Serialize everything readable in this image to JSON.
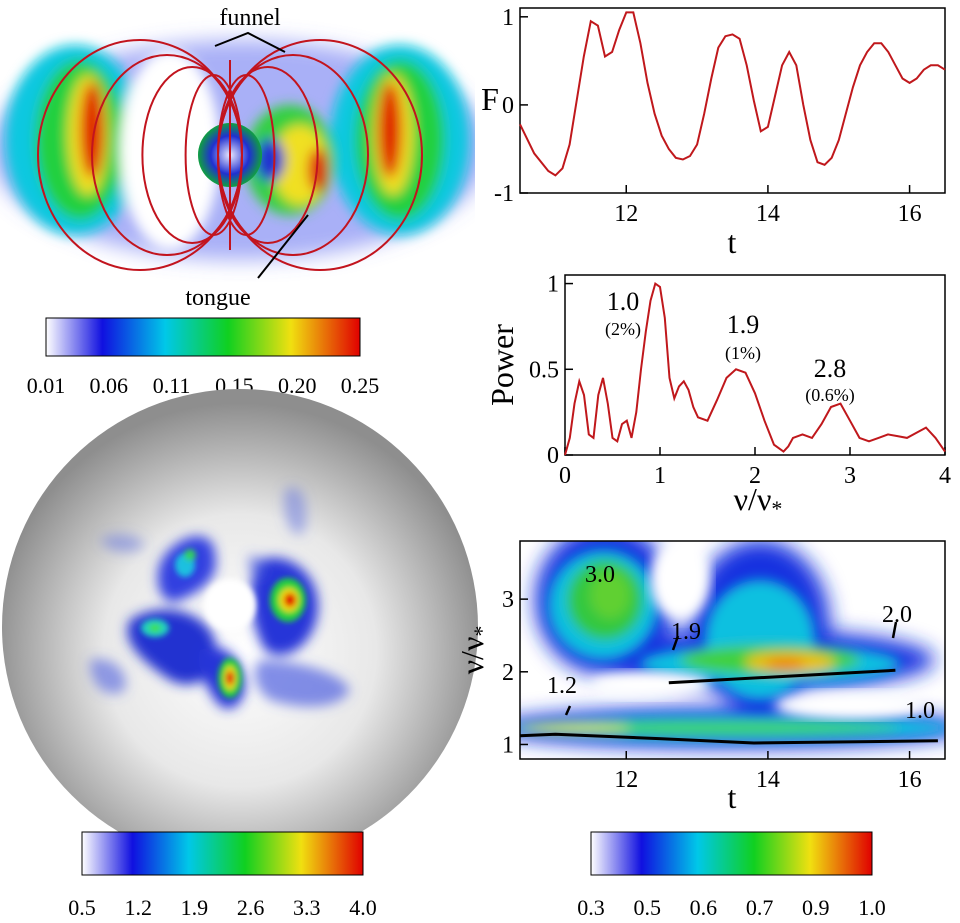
{
  "colors": {
    "curve": "#c0181c",
    "fieldline": "#c2141e",
    "axis": "#000000"
  },
  "panels": {
    "meridional": {
      "annotations": {
        "funnel": "funnel",
        "tongue": "tongue"
      },
      "colorbar": {
        "palette": "rainbow",
        "ticks": [
          "0.01",
          "0.06",
          "0.11",
          "0.15",
          "0.20",
          "0.25"
        ]
      }
    },
    "surface": {
      "colorbar": {
        "palette": "rainbow",
        "ticks": [
          "0.5",
          "1.2",
          "1.9",
          "2.6",
          "3.3",
          "4.0"
        ]
      }
    },
    "wavelet": {
      "colorbar": {
        "palette": "rainbow",
        "ticks": [
          "0.3",
          "0.5",
          "0.6",
          "0.7",
          "0.9",
          "1.0"
        ]
      }
    }
  },
  "chart_data": [
    {
      "type": "line",
      "ylabel": "F",
      "xlabel": "t",
      "xlim": [
        10.5,
        16.5
      ],
      "ylim": [
        -1,
        1.1
      ],
      "xticks": [
        "12",
        "14",
        "16"
      ],
      "yticks": [
        "-1",
        "0",
        "1"
      ],
      "x": [
        10.5,
        10.7,
        10.9,
        11.0,
        11.1,
        11.2,
        11.3,
        11.4,
        11.5,
        11.6,
        11.7,
        11.8,
        11.9,
        12.0,
        12.1,
        12.2,
        12.3,
        12.4,
        12.5,
        12.6,
        12.7,
        12.8,
        12.9,
        13.0,
        13.1,
        13.2,
        13.3,
        13.4,
        13.5,
        13.6,
        13.7,
        13.8,
        13.9,
        14.0,
        14.1,
        14.2,
        14.3,
        14.4,
        14.5,
        14.6,
        14.7,
        14.8,
        14.9,
        15.0,
        15.1,
        15.2,
        15.3,
        15.4,
        15.5,
        15.6,
        15.7,
        15.8,
        15.9,
        16.0,
        16.1,
        16.2,
        16.3,
        16.4,
        16.5
      ],
      "y": [
        -0.22,
        -0.55,
        -0.75,
        -0.8,
        -0.72,
        -0.45,
        0.05,
        0.55,
        0.95,
        0.9,
        0.55,
        0.6,
        0.85,
        1.05,
        1.05,
        0.7,
        0.25,
        -0.1,
        -0.35,
        -0.5,
        -0.6,
        -0.62,
        -0.58,
        -0.45,
        -0.1,
        0.3,
        0.65,
        0.78,
        0.8,
        0.75,
        0.45,
        0.05,
        -0.3,
        -0.25,
        0.1,
        0.45,
        0.6,
        0.45,
        0.0,
        -0.4,
        -0.65,
        -0.68,
        -0.6,
        -0.4,
        -0.1,
        0.2,
        0.45,
        0.6,
        0.7,
        0.7,
        0.6,
        0.45,
        0.3,
        0.25,
        0.3,
        0.4,
        0.45,
        0.45,
        0.4
      ]
    },
    {
      "type": "line",
      "ylabel": "Power",
      "xlabel": "ν/ν*",
      "xlim": [
        0,
        4
      ],
      "ylim": [
        0,
        1.05
      ],
      "xticks": [
        "0",
        "1",
        "2",
        "3",
        "4"
      ],
      "yticks": [
        "0",
        "0.5",
        "1"
      ],
      "x": [
        0.0,
        0.05,
        0.1,
        0.15,
        0.2,
        0.25,
        0.3,
        0.35,
        0.4,
        0.45,
        0.5,
        0.55,
        0.6,
        0.65,
        0.7,
        0.75,
        0.8,
        0.85,
        0.9,
        0.95,
        1.0,
        1.05,
        1.1,
        1.15,
        1.2,
        1.25,
        1.3,
        1.35,
        1.4,
        1.5,
        1.6,
        1.7,
        1.8,
        1.9,
        2.0,
        2.1,
        2.2,
        2.3,
        2.35,
        2.4,
        2.5,
        2.6,
        2.7,
        2.8,
        2.9,
        3.0,
        3.1,
        3.2,
        3.3,
        3.4,
        3.5,
        3.6,
        3.7,
        3.8,
        3.9,
        4.0
      ],
      "y": [
        0.0,
        0.1,
        0.3,
        0.43,
        0.35,
        0.12,
        0.1,
        0.35,
        0.45,
        0.3,
        0.1,
        0.08,
        0.18,
        0.2,
        0.1,
        0.25,
        0.5,
        0.72,
        0.9,
        1.0,
        0.98,
        0.8,
        0.45,
        0.33,
        0.4,
        0.43,
        0.38,
        0.28,
        0.22,
        0.2,
        0.32,
        0.45,
        0.5,
        0.48,
        0.36,
        0.2,
        0.06,
        0.02,
        0.05,
        0.1,
        0.12,
        0.1,
        0.18,
        0.28,
        0.3,
        0.2,
        0.1,
        0.08,
        0.1,
        0.12,
        0.11,
        0.1,
        0.13,
        0.16,
        0.1,
        0.02
      ],
      "annotations": [
        {
          "label": "1.0",
          "sub": "(2%)"
        },
        {
          "label": "1.9",
          "sub": "(1%)"
        },
        {
          "label": "2.8",
          "sub": "(0.6%)"
        }
      ]
    },
    {
      "type": "heatmap",
      "ylabel": "ν/ν*",
      "xlabel": "t",
      "xlim": [
        10.5,
        16.5
      ],
      "ylim": [
        0.8,
        3.8
      ],
      "xticks": [
        "12",
        "14",
        "16"
      ],
      "yticks": [
        "1",
        "2",
        "3"
      ],
      "annotations": [
        "3.0",
        "1.9",
        "2.0",
        "1.2",
        "1.0"
      ],
      "ridges": [
        {
          "x": [
            10.5,
            11.0,
            12.5,
            13.8,
            16.4
          ],
          "y": [
            1.12,
            1.14,
            1.08,
            1.02,
            1.05
          ]
        },
        {
          "x": [
            12.6,
            15.8
          ],
          "y": [
            1.85,
            2.02
          ]
        }
      ]
    }
  ]
}
